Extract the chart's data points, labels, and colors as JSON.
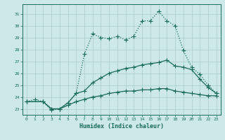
{
  "xlabel": "Humidex (Indice chaleur)",
  "bg_color": "#cce8e8",
  "grid_color": "#aacccc",
  "line_color": "#1a6b5a",
  "xlim": [
    -0.5,
    23.5
  ],
  "ylim": [
    22.5,
    31.8
  ],
  "xticks": [
    0,
    1,
    2,
    3,
    4,
    5,
    6,
    7,
    8,
    9,
    10,
    11,
    12,
    13,
    14,
    15,
    16,
    17,
    18,
    19,
    20,
    21,
    22,
    23
  ],
  "yticks": [
    23,
    24,
    25,
    26,
    27,
    28,
    29,
    30,
    31
  ],
  "line1_x": [
    0,
    1,
    2,
    3,
    4,
    5,
    6,
    7,
    8,
    9,
    10,
    11,
    12,
    13,
    14,
    15,
    16,
    17,
    18,
    19,
    20,
    21,
    22,
    23
  ],
  "line1_y": [
    23.6,
    23.8,
    23.6,
    22.9,
    23.0,
    23.5,
    24.3,
    27.6,
    29.3,
    29.0,
    28.9,
    29.1,
    28.8,
    29.1,
    30.4,
    30.4,
    31.2,
    30.4,
    30.0,
    27.9,
    26.5,
    25.9,
    25.0,
    24.3
  ],
  "line2_x": [
    0,
    2,
    3,
    4,
    5,
    6,
    7,
    8,
    9,
    10,
    11,
    12,
    13,
    14,
    15,
    16,
    17,
    18,
    19,
    20,
    21,
    22,
    23
  ],
  "line2_y": [
    23.6,
    23.6,
    23.0,
    23.0,
    23.5,
    24.3,
    24.5,
    25.2,
    25.6,
    26.0,
    26.2,
    26.4,
    26.5,
    26.7,
    26.8,
    26.9,
    27.1,
    26.6,
    26.5,
    26.3,
    25.5,
    24.8,
    24.3
  ],
  "line3_x": [
    0,
    2,
    3,
    4,
    5,
    6,
    7,
    8,
    9,
    10,
    11,
    12,
    13,
    14,
    15,
    16,
    17,
    18,
    19,
    20,
    21,
    22,
    23
  ],
  "line3_y": [
    23.6,
    23.6,
    23.0,
    23.0,
    23.3,
    23.6,
    23.8,
    24.0,
    24.1,
    24.3,
    24.4,
    24.5,
    24.5,
    24.6,
    24.6,
    24.7,
    24.7,
    24.5,
    24.4,
    24.3,
    24.2,
    24.1,
    24.1
  ]
}
